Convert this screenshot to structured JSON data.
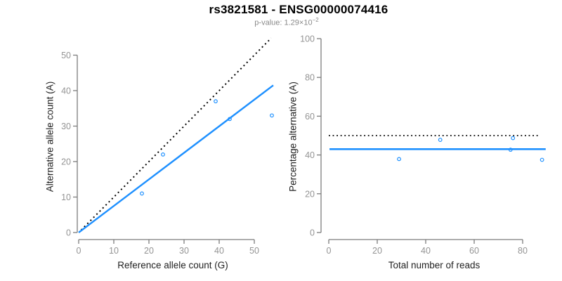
{
  "header": {
    "title": "rs3821581 - ENSG00000074416",
    "subtitle_base": "p-value: 1.29×10",
    "subtitle_exponent": "−2"
  },
  "colors": {
    "accent_blue": "#1E90FF",
    "identity_black": "#000000",
    "axis_gray": "#7d7d7d",
    "tick_label_gray": "#949494",
    "axis_title_dark": "#1f1f1f",
    "subtitle_gray": "#8a8a8a"
  },
  "chart_data": [
    {
      "id": "allele-counts",
      "type": "scatter",
      "xlabel": "Reference allele count (G)",
      "ylabel": "Alternative allele count (A)",
      "xlim": [
        0,
        55
      ],
      "ylim": [
        0,
        55
      ],
      "xticks": [
        0,
        10,
        20,
        30,
        40,
        50
      ],
      "yticks": [
        0,
        10,
        20,
        30,
        40,
        50
      ],
      "grid": false,
      "points": [
        [
          18,
          11
        ],
        [
          24,
          22
        ],
        [
          39,
          37
        ],
        [
          43,
          32
        ],
        [
          55,
          33
        ]
      ],
      "lines": [
        {
          "name": "identity-line",
          "x1": 0.7,
          "y1": 0.7,
          "x2": 54.8,
          "y2": 54.8,
          "style": "dotted",
          "color": "#000000",
          "width": 2
        },
        {
          "name": "regression-line",
          "x1": 0,
          "y1": 0,
          "x2": 55.4,
          "y2": 41.5,
          "style": "solid",
          "color": "#1E90FF",
          "width": 2.4
        }
      ]
    },
    {
      "id": "percentage-alternative",
      "type": "scatter",
      "xlabel": "Total number of reads",
      "ylabel": "Percentage alternative (A)",
      "xlim": [
        0,
        90
      ],
      "ylim": [
        0,
        100
      ],
      "xticks": [
        0,
        20,
        40,
        60,
        80
      ],
      "yticks": [
        0,
        20,
        40,
        60,
        80,
        100
      ],
      "grid": false,
      "points": [
        [
          29,
          37.9
        ],
        [
          46,
          47.8
        ],
        [
          75,
          42.7
        ],
        [
          76,
          48.7
        ],
        [
          88,
          37.5
        ]
      ],
      "lines": [
        {
          "name": "fifty-percent-line",
          "x1": 0,
          "y1": 50,
          "x2": 86.5,
          "y2": 50,
          "style": "dotted",
          "color": "#000000",
          "width": 1.8
        },
        {
          "name": "mean-percentage-line",
          "x1": 0.3,
          "y1": 43,
          "x2": 89.5,
          "y2": 43,
          "style": "solid",
          "color": "#1E90FF",
          "width": 2.6
        }
      ]
    }
  ]
}
